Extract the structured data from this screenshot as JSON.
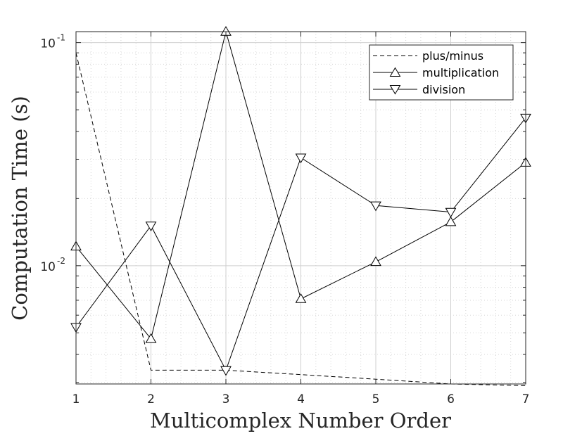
{
  "chart_data": {
    "type": "line",
    "xlabel": "Multicomplex Number Order",
    "ylabel": "Computation Time (s)",
    "x": [
      1,
      2,
      3,
      4,
      5,
      6,
      7
    ],
    "xlim": [
      1,
      7
    ],
    "ylim": [
      0.00295,
      0.112
    ],
    "yscale": "log",
    "grid": true,
    "minor_grid": true,
    "legend_position": "top-right",
    "x_ticks": [
      "1",
      "2",
      "3",
      "4",
      "5",
      "6",
      "7"
    ],
    "y_ticks": [
      {
        "value": 0.01,
        "base": "10",
        "exp": "-2"
      },
      {
        "value": 0.1,
        "base": "10",
        "exp": "-1"
      }
    ],
    "series": [
      {
        "name": "plus/minus",
        "line_style": "dashed",
        "marker": "none",
        "values": [
          0.09,
          0.0034,
          0.0034,
          0.00325,
          0.0031,
          0.00295,
          0.0029
        ]
      },
      {
        "name": "multiplication",
        "line_style": "solid",
        "marker": "triangle-up",
        "values": [
          0.0122,
          0.0047,
          0.112,
          0.0071,
          0.0104,
          0.0157,
          0.029
        ]
      },
      {
        "name": "division",
        "line_style": "solid",
        "marker": "triangle-down",
        "values": [
          0.0053,
          0.0151,
          0.0034,
          0.0305,
          0.0186,
          0.0174,
          0.046
        ]
      }
    ]
  }
}
